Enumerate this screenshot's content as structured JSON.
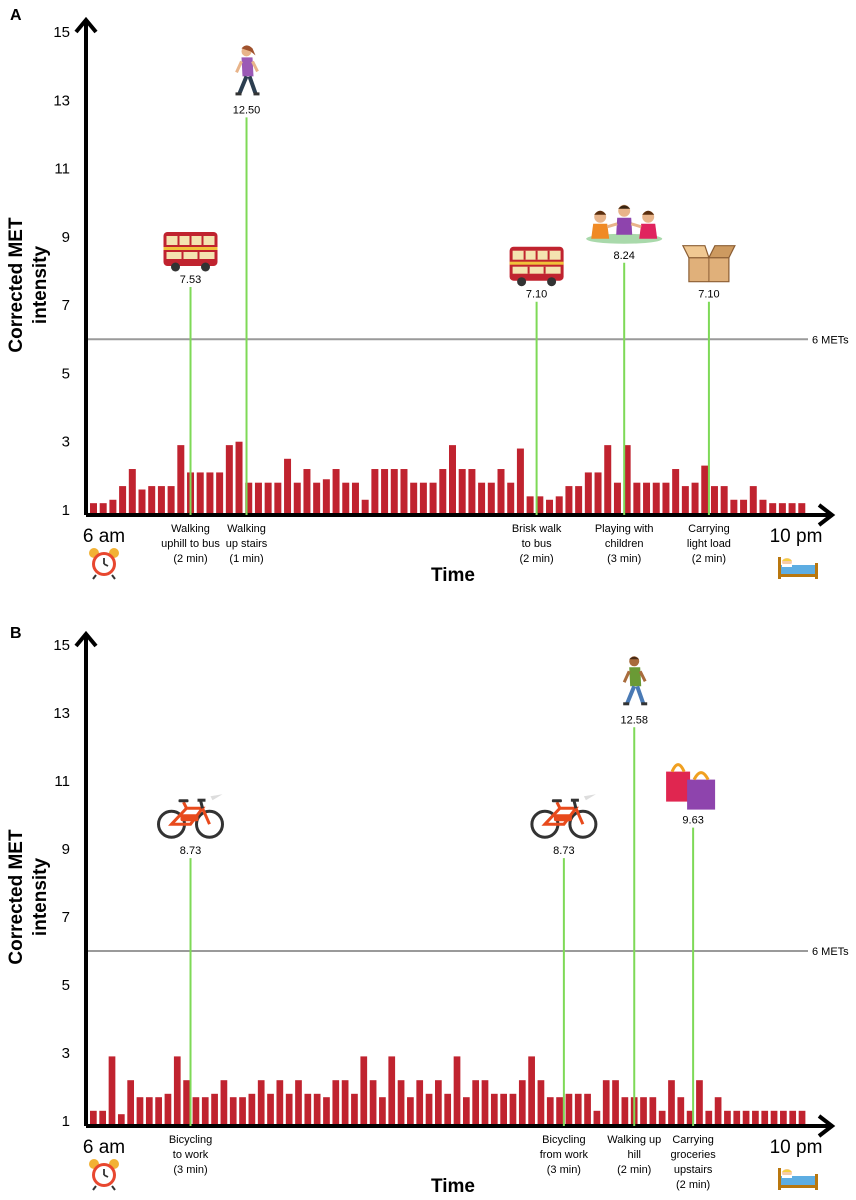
{
  "colors": {
    "bar": "#c0232f",
    "spike": "#7ed957",
    "reference": "#9a9a9a",
    "axis": "#000000"
  },
  "chart_data": [
    {
      "panel": "A",
      "type": "bar",
      "ylabel_line1": "Corrected MET",
      "ylabel_line2": "intensity",
      "xlabel": "Time",
      "x_start": "6 am",
      "x_end": "10 pm",
      "yticks": [
        "1",
        "3",
        "5",
        "7",
        "9",
        "11",
        "13",
        "15"
      ],
      "ylim": [
        1,
        15
      ],
      "reference": {
        "value": 6,
        "label": "6 METs"
      },
      "start_icon": "alarm-clock-icon",
      "end_icon": "bed-icon",
      "values": [
        1.2,
        1.2,
        1.3,
        1.7,
        2.2,
        1.6,
        1.7,
        1.7,
        1.7,
        2.9,
        2.1,
        2.1,
        2.1,
        2.1,
        2.9,
        3.0,
        1.8,
        1.8,
        1.8,
        1.8,
        2.5,
        1.8,
        2.2,
        1.8,
        1.9,
        2.2,
        1.8,
        1.8,
        1.3,
        2.2,
        2.2,
        2.2,
        2.2,
        1.8,
        1.8,
        1.8,
        2.2,
        2.9,
        2.2,
        2.2,
        1.8,
        1.8,
        2.2,
        1.8,
        2.8,
        1.4,
        1.4,
        1.3,
        1.4,
        1.7,
        1.7,
        2.1,
        2.1,
        2.9,
        1.8,
        2.9,
        1.8,
        1.8,
        1.8,
        1.8,
        2.2,
        1.7,
        1.8,
        2.3,
        1.7,
        1.7,
        1.3,
        1.3,
        1.7,
        1.3,
        1.2,
        1.2,
        1.2,
        1.2
      ],
      "spikes": [
        {
          "position": 0.14,
          "value": 7.53,
          "label": "7.53",
          "activity": [
            "Walking",
            "uphill to bus",
            "(2 min)"
          ],
          "icon": "bus-icon"
        },
        {
          "position": 0.218,
          "value": 12.5,
          "label": "12.50",
          "activity": [
            "Walking",
            "up stairs",
            "(1 min)"
          ],
          "icon": "walking-woman-icon"
        },
        {
          "position": 0.622,
          "value": 7.1,
          "label": "7.10",
          "activity": [
            "Brisk walk",
            "to bus",
            "(2 min)"
          ],
          "icon": "bus-icon"
        },
        {
          "position": 0.744,
          "value": 8.24,
          "label": "8.24",
          "activity": [
            "Playing with",
            "children",
            "(3 min)"
          ],
          "icon": "children-icon"
        },
        {
          "position": 0.862,
          "value": 7.1,
          "label": "7.10",
          "activity": [
            "Carrying",
            "light load",
            "(2 min)"
          ],
          "icon": "box-icon"
        }
      ]
    },
    {
      "panel": "B",
      "type": "bar",
      "ylabel_line1": "Corrected MET",
      "ylabel_line2": "intensity",
      "xlabel": "Time",
      "x_start": "6 am",
      "x_end": "10 pm",
      "yticks": [
        "1",
        "3",
        "5",
        "7",
        "9",
        "11",
        "13",
        "15"
      ],
      "ylim": [
        1,
        15
      ],
      "reference": {
        "value": 6,
        "label": "6 METs"
      },
      "start_icon": "alarm-clock-icon",
      "end_icon": "bed-icon",
      "values": [
        1.3,
        1.3,
        2.9,
        1.2,
        2.2,
        1.7,
        1.7,
        1.7,
        1.8,
        2.9,
        2.2,
        1.7,
        1.7,
        1.8,
        2.2,
        1.7,
        1.7,
        1.8,
        2.2,
        1.8,
        2.2,
        1.8,
        2.2,
        1.8,
        1.8,
        1.7,
        2.2,
        2.2,
        1.8,
        2.9,
        2.2,
        1.7,
        2.9,
        2.2,
        1.7,
        2.2,
        1.8,
        2.2,
        1.8,
        2.9,
        1.7,
        2.2,
        2.2,
        1.8,
        1.8,
        1.8,
        2.2,
        2.9,
        2.2,
        1.7,
        1.7,
        1.8,
        1.8,
        1.8,
        1.3,
        2.2,
        2.2,
        1.7,
        1.7,
        1.7,
        1.7,
        1.3,
        2.2,
        1.7,
        1.3,
        2.2,
        1.3,
        1.7,
        1.3,
        1.3,
        1.3,
        1.3,
        1.3,
        1.3,
        1.3,
        1.3,
        1.3
      ],
      "spikes": [
        {
          "position": 0.14,
          "value": 8.73,
          "label": "8.73",
          "activity": [
            "Bicycling",
            "to work",
            "(3 min)"
          ],
          "icon": "bicycle-icon"
        },
        {
          "position": 0.66,
          "value": 8.73,
          "label": "8.73",
          "activity": [
            "Bicycling",
            "from work",
            "(3 min)"
          ],
          "icon": "bicycle-icon"
        },
        {
          "position": 0.758,
          "value": 12.58,
          "label": "12.58",
          "activity": [
            "Walking up",
            "hill",
            "(2 min)"
          ],
          "icon": "walking-man-icon"
        },
        {
          "position": 0.84,
          "value": 9.63,
          "label": "9.63",
          "activity": [
            "Carrying",
            "groceries",
            "upstairs",
            "(2 min)"
          ],
          "icon": "shopping-bags-icon"
        }
      ]
    }
  ]
}
